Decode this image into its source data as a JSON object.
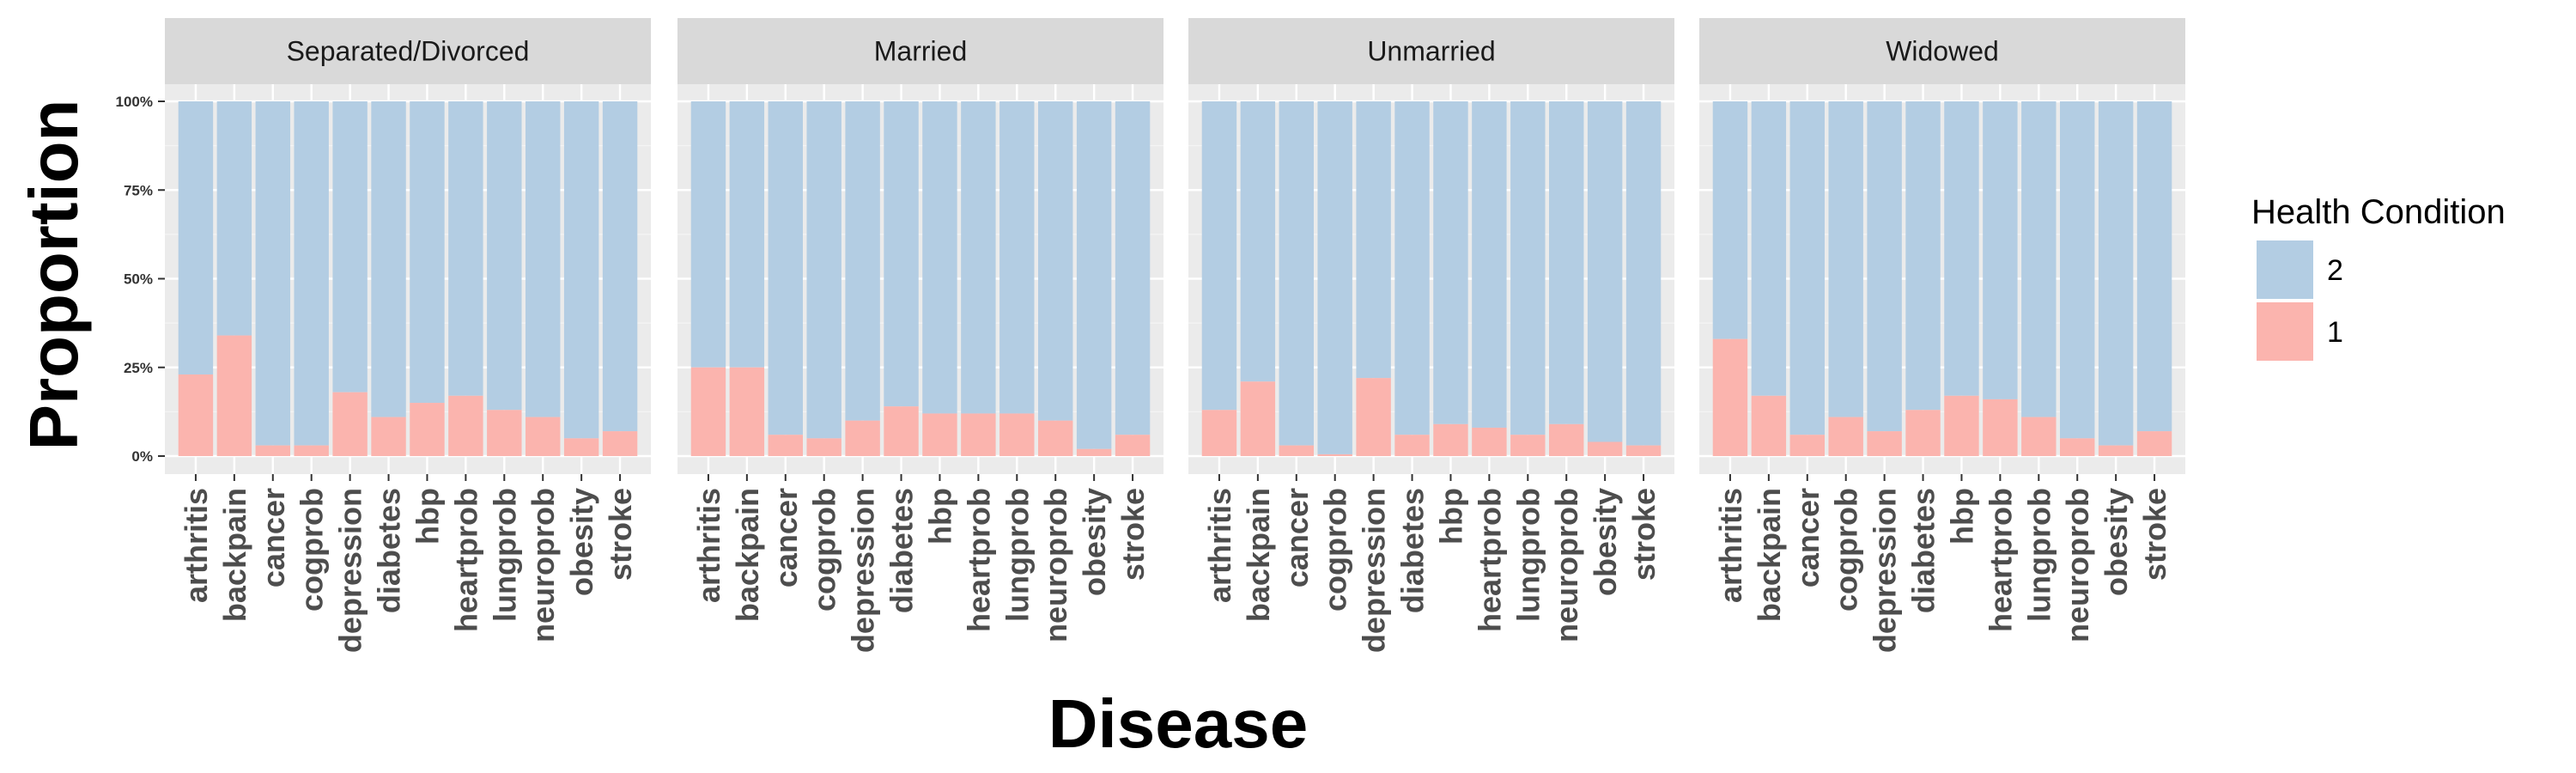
{
  "chart_data": {
    "type": "bar",
    "stacked": "proportion",
    "facet_labels": [
      "Separated/Divorced",
      "Married",
      "Unmarried",
      "Widowed"
    ],
    "categories": [
      "arthritis",
      "backpain",
      "cancer",
      "cogprob",
      "depression",
      "diabetes",
      "hbp",
      "heartprob",
      "lungprob",
      "neuroprob",
      "obesity",
      "stroke"
    ],
    "xlabel": "Disease",
    "ylabel": "Proportion",
    "ylim": [
      0,
      1
    ],
    "yticks": [
      0,
      0.25,
      0.5,
      0.75,
      1
    ],
    "ytick_labels": [
      "0%",
      "25%",
      "50%",
      "75%",
      "100%"
    ],
    "legend": {
      "title": "Health Condition",
      "position": "right",
      "entries": [
        {
          "label": "2",
          "color": "#b3cde3"
        },
        {
          "label": "1",
          "color": "#fbb4ae"
        }
      ]
    },
    "series": [
      {
        "name": "1",
        "color": "#fbb4ae",
        "values_by_facet": [
          [
            0.23,
            0.34,
            0.03,
            0.03,
            0.18,
            0.11,
            0.15,
            0.17,
            0.13,
            0.11,
            0.05,
            0.07
          ],
          [
            0.25,
            0.25,
            0.06,
            0.05,
            0.1,
            0.14,
            0.12,
            0.12,
            0.12,
            0.1,
            0.02,
            0.06
          ],
          [
            0.13,
            0.21,
            0.03,
            0.005,
            0.22,
            0.06,
            0.09,
            0.08,
            0.06,
            0.09,
            0.04,
            0.03
          ],
          [
            0.33,
            0.17,
            0.06,
            0.11,
            0.07,
            0.13,
            0.17,
            0.16,
            0.11,
            0.05,
            0.03,
            0.07
          ]
        ]
      },
      {
        "name": "2",
        "color": "#b3cde3",
        "values_by_facet": [
          [
            0.77,
            0.66,
            0.97,
            0.97,
            0.82,
            0.89,
            0.85,
            0.83,
            0.87,
            0.89,
            0.95,
            0.93
          ],
          [
            0.75,
            0.75,
            0.94,
            0.95,
            0.9,
            0.86,
            0.88,
            0.88,
            0.88,
            0.9,
            0.98,
            0.94
          ],
          [
            0.87,
            0.79,
            0.97,
            0.995,
            0.78,
            0.94,
            0.91,
            0.92,
            0.94,
            0.91,
            0.96,
            0.97
          ],
          [
            0.67,
            0.83,
            0.94,
            0.89,
            0.93,
            0.87,
            0.83,
            0.84,
            0.89,
            0.95,
            0.97,
            0.93
          ]
        ]
      }
    ],
    "grid": true,
    "panel_background": "#ebebeb",
    "strip_background": "#d9d9d9"
  }
}
